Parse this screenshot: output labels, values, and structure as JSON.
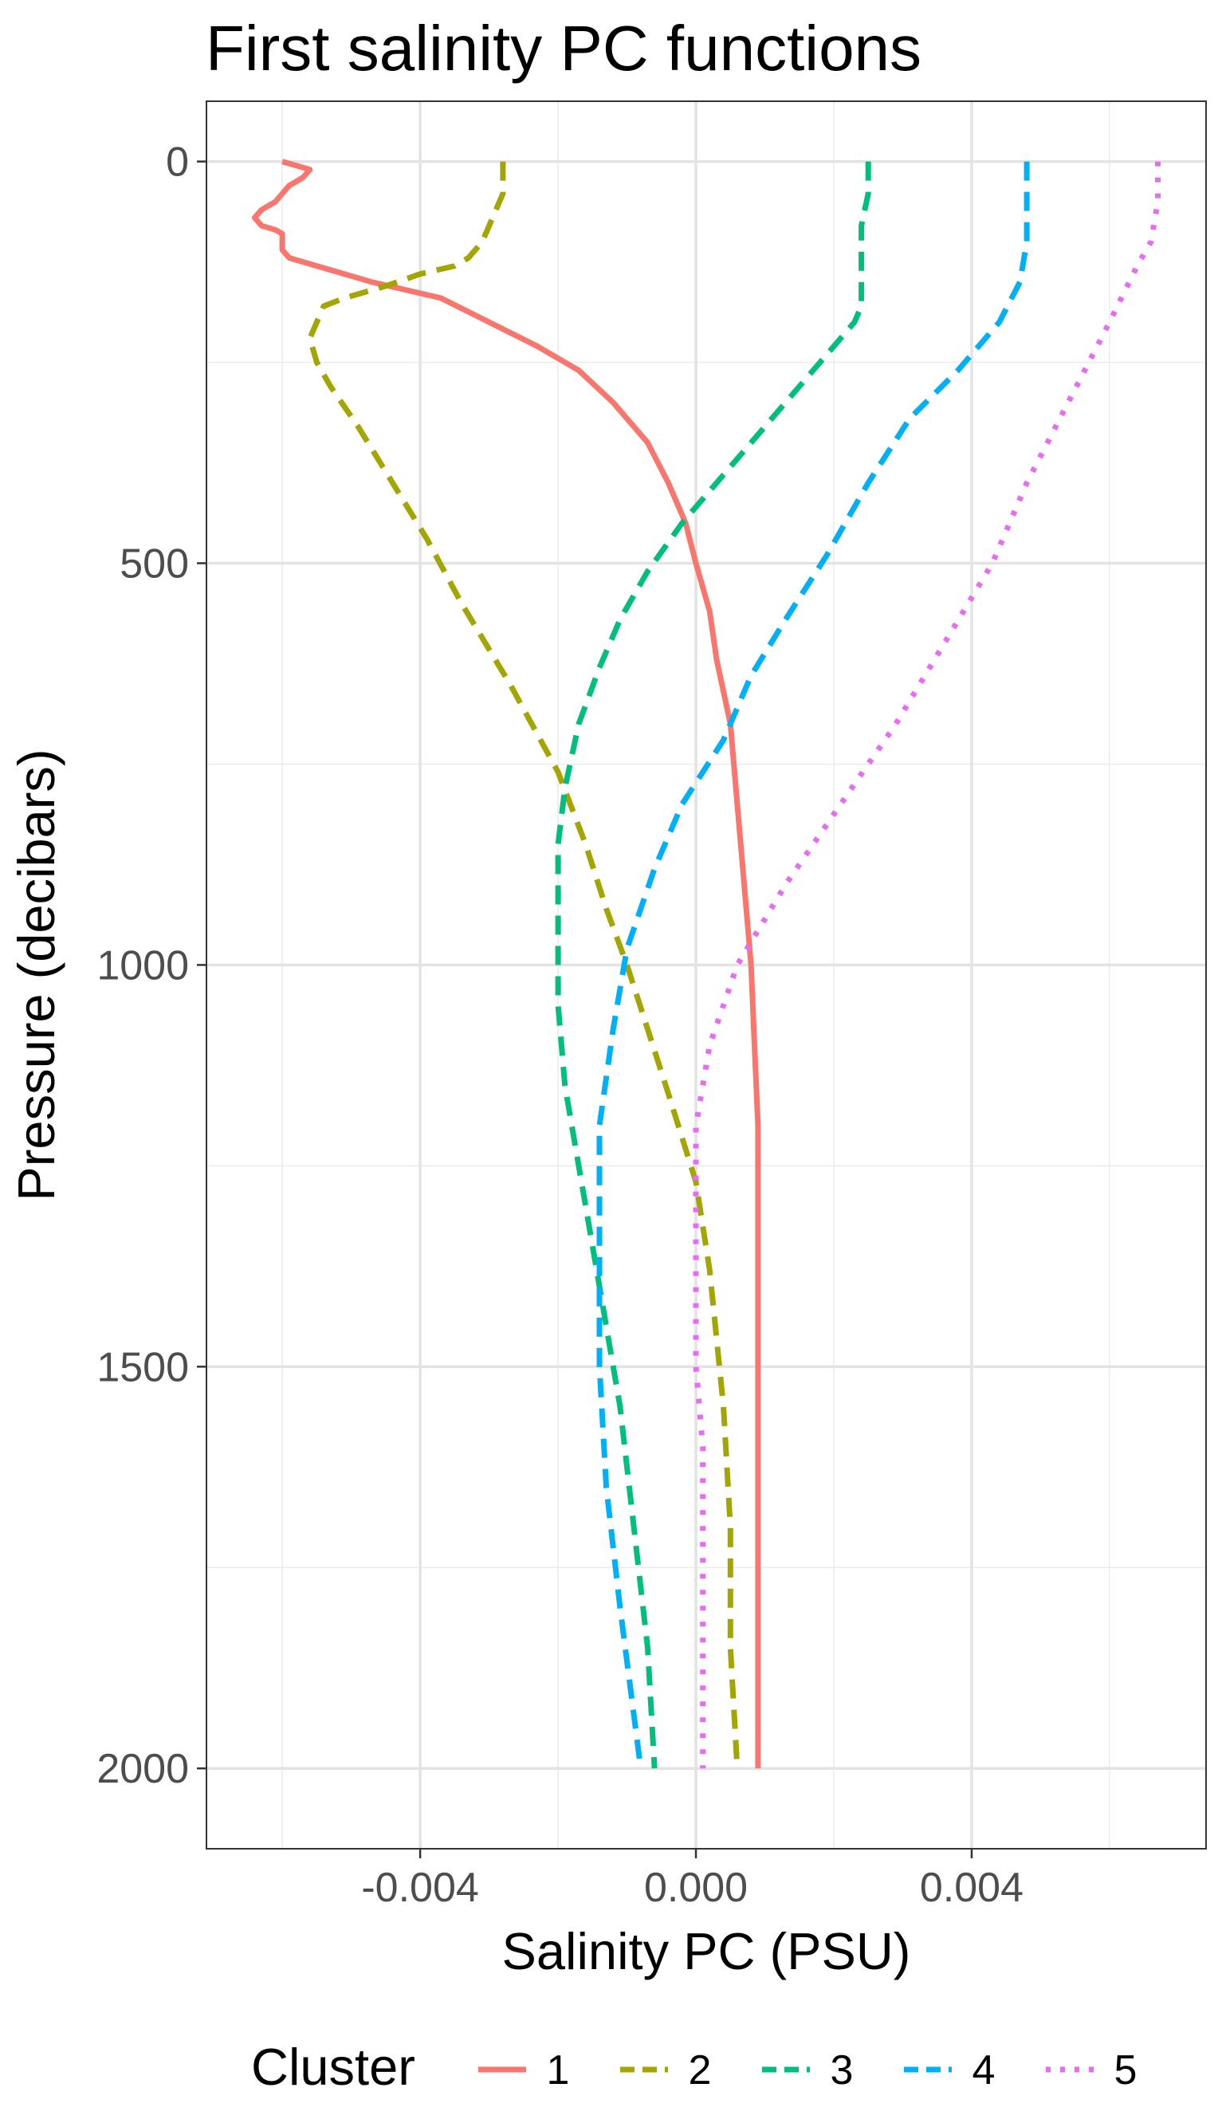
{
  "chart_data": {
    "type": "line",
    "title": "First salinity PC functions",
    "xlabel": "Salinity PC (PSU)",
    "ylabel": "Pressure (decibars)",
    "xlim": [
      -0.0071,
      0.0074
    ],
    "ylim": [
      2100,
      -75
    ],
    "y_reversed": true,
    "x_ticks": [
      -0.004,
      0.0,
      0.004
    ],
    "x_tick_labels": [
      "-0.004",
      "0.000",
      "0.004"
    ],
    "y_ticks": [
      0,
      500,
      1000,
      1500,
      2000
    ],
    "y_tick_labels": [
      "0",
      "500",
      "1000",
      "1500",
      "2000"
    ],
    "grid": true,
    "legend": {
      "title": "Cluster",
      "position": "bottom",
      "entries": [
        "1",
        "2",
        "3",
        "4",
        "5"
      ]
    },
    "series": [
      {
        "name": "1",
        "color": "#F8766D",
        "linestyle": "solid",
        "points": [
          [
            -0.006,
            0
          ],
          [
            -0.0058,
            5
          ],
          [
            -0.0056,
            10
          ],
          [
            -0.0057,
            20
          ],
          [
            -0.0059,
            30
          ],
          [
            -0.006,
            40
          ],
          [
            -0.0061,
            50
          ],
          [
            -0.0063,
            60
          ],
          [
            -0.0064,
            70
          ],
          [
            -0.0063,
            80
          ],
          [
            -0.0061,
            85
          ],
          [
            -0.006,
            90
          ],
          [
            -0.006,
            100
          ],
          [
            -0.006,
            110
          ],
          [
            -0.0059,
            120
          ],
          [
            -0.0055,
            130
          ],
          [
            -0.0047,
            150
          ],
          [
            -0.0037,
            170
          ],
          [
            -0.003,
            200
          ],
          [
            -0.0023,
            230
          ],
          [
            -0.0017,
            260
          ],
          [
            -0.0012,
            300
          ],
          [
            -0.0007,
            350
          ],
          [
            -0.0004,
            400
          ],
          [
            -0.00015,
            450
          ],
          [
            0.0,
            500
          ],
          [
            0.0002,
            560
          ],
          [
            0.0003,
            620
          ],
          [
            0.0005,
            700
          ],
          [
            0.0006,
            800
          ],
          [
            0.0007,
            900
          ],
          [
            0.0008,
            1000
          ],
          [
            0.00085,
            1100
          ],
          [
            0.0009,
            1200
          ],
          [
            0.0009,
            1300
          ],
          [
            0.0009,
            1400
          ],
          [
            0.0009,
            1500
          ],
          [
            0.0009,
            1600
          ],
          [
            0.0009,
            1700
          ],
          [
            0.0009,
            1800
          ],
          [
            0.0009,
            1900
          ],
          [
            0.0009,
            2000
          ]
        ]
      },
      {
        "name": "2",
        "color": "#A3A500",
        "linestyle": "dashed",
        "points": [
          [
            -0.0028,
            0
          ],
          [
            -0.0028,
            20
          ],
          [
            -0.0028,
            40
          ],
          [
            -0.0029,
            60
          ],
          [
            -0.003,
            80
          ],
          [
            -0.0031,
            100
          ],
          [
            -0.0033,
            120
          ],
          [
            -0.0035,
            130
          ],
          [
            -0.004,
            140
          ],
          [
            -0.0045,
            155
          ],
          [
            -0.0051,
            170
          ],
          [
            -0.0054,
            180
          ],
          [
            -0.0055,
            200
          ],
          [
            -0.0056,
            220
          ],
          [
            -0.0055,
            250
          ],
          [
            -0.0053,
            280
          ],
          [
            -0.0049,
            330
          ],
          [
            -0.0044,
            400
          ],
          [
            -0.0039,
            470
          ],
          [
            -0.0034,
            550
          ],
          [
            -0.0027,
            650
          ],
          [
            -0.002,
            760
          ],
          [
            -0.0016,
            850
          ],
          [
            -0.0013,
            930
          ],
          [
            -0.001,
            1000
          ],
          [
            -0.0007,
            1080
          ],
          [
            -0.0004,
            1160
          ],
          [
            0.0,
            1270
          ],
          [
            0.0002,
            1380
          ],
          [
            0.0004,
            1550
          ],
          [
            0.0005,
            1700
          ],
          [
            0.0005,
            1850
          ],
          [
            0.0006,
            2000
          ]
        ]
      },
      {
        "name": "3",
        "color": "#00BF7D",
        "linestyle": "dashed",
        "points": [
          [
            0.0025,
            0
          ],
          [
            0.0025,
            40
          ],
          [
            0.0024,
            80
          ],
          [
            0.0024,
            120
          ],
          [
            0.0024,
            150
          ],
          [
            0.0024,
            180
          ],
          [
            0.0023,
            200
          ],
          [
            0.002,
            230
          ],
          [
            0.0016,
            270
          ],
          [
            0.001,
            330
          ],
          [
            0.0004,
            390
          ],
          [
            -0.0002,
            450
          ],
          [
            -0.0007,
            510
          ],
          [
            -0.0011,
            570
          ],
          [
            -0.0014,
            630
          ],
          [
            -0.0017,
            700
          ],
          [
            -0.0019,
            780
          ],
          [
            -0.002,
            850
          ],
          [
            -0.002,
            950
          ],
          [
            -0.002,
            1050
          ],
          [
            -0.0019,
            1150
          ],
          [
            -0.0017,
            1250
          ],
          [
            -0.0014,
            1400
          ],
          [
            -0.0011,
            1550
          ],
          [
            -0.0009,
            1700
          ],
          [
            -0.0007,
            1850
          ],
          [
            -0.0006,
            2000
          ]
        ]
      },
      {
        "name": "4",
        "color": "#00B0F6",
        "linestyle": "dashed",
        "points": [
          [
            0.0048,
            0
          ],
          [
            0.0048,
            30
          ],
          [
            0.0048,
            60
          ],
          [
            0.0048,
            100
          ],
          [
            0.0047,
            150
          ],
          [
            0.0044,
            200
          ],
          [
            0.0038,
            260
          ],
          [
            0.0031,
            320
          ],
          [
            0.0025,
            400
          ],
          [
            0.0019,
            490
          ],
          [
            0.0013,
            570
          ],
          [
            0.0008,
            640
          ],
          [
            0.0004,
            720
          ],
          [
            -0.0002,
            800
          ],
          [
            -0.0006,
            880
          ],
          [
            -0.001,
            980
          ],
          [
            -0.0012,
            1080
          ],
          [
            -0.0014,
            1200
          ],
          [
            -0.0014,
            1350
          ],
          [
            -0.0014,
            1500
          ],
          [
            -0.0013,
            1650
          ],
          [
            -0.0011,
            1800
          ],
          [
            -0.0008,
            2000
          ]
        ]
      },
      {
        "name": "5",
        "color": "#E76BF3",
        "linestyle": "dotted",
        "points": [
          [
            0.0067,
            0
          ],
          [
            0.0067,
            50
          ],
          [
            0.0066,
            100
          ],
          [
            0.0064,
            130
          ],
          [
            0.006,
            200
          ],
          [
            0.0054,
            300
          ],
          [
            0.0048,
            400
          ],
          [
            0.0043,
            500
          ],
          [
            0.0036,
            600
          ],
          [
            0.0029,
            700
          ],
          [
            0.0021,
            800
          ],
          [
            0.0013,
            900
          ],
          [
            0.0006,
            1000
          ],
          [
            0.0002,
            1100
          ],
          [
            0.0,
            1200
          ],
          [
            0.0,
            1300
          ],
          [
            0.0,
            1400
          ],
          [
            0.0,
            1500
          ],
          [
            0.0001,
            1600
          ],
          [
            0.0001,
            1700
          ],
          [
            0.0001,
            1800
          ],
          [
            0.0001,
            1900
          ],
          [
            0.0001,
            2000
          ]
        ]
      }
    ]
  }
}
